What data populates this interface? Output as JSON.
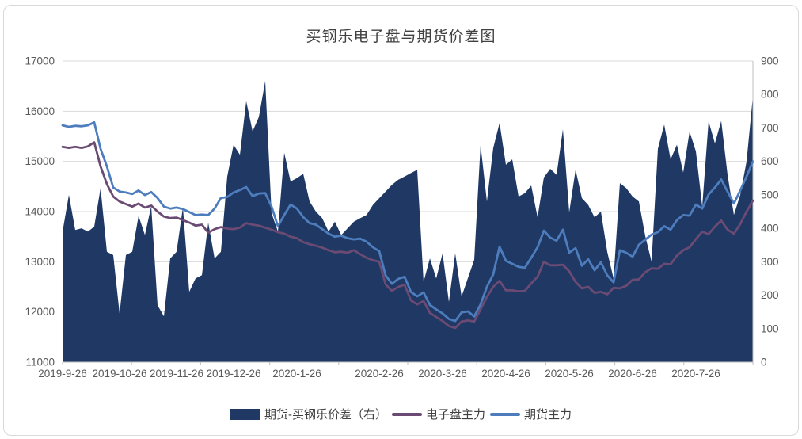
{
  "title": "买钢乐电子盘与期货价差图",
  "colors": {
    "area": "#1f3864",
    "electronic_line": "#6b4b73",
    "futures_line": "#4e7dbe",
    "grid": "#d9d9d9",
    "axis_line": "#bfbfbf",
    "tick_text": "#595959",
    "title_text": "#404040",
    "legend_text": "#404040",
    "card_border": "#d9d9d9"
  },
  "legend": [
    {
      "label": "期货-买钢乐价差（右）",
      "type": "area"
    },
    {
      "label": "电子盘主力",
      "type": "line"
    },
    {
      "label": "期货主力",
      "type": "line"
    }
  ],
  "chart_data": {
    "type": "combo-area-line",
    "title": "买钢乐电子盘与期货价差图",
    "left_axis": {
      "min": 11000,
      "max": 17000,
      "step": 1000,
      "ticks": [
        11000,
        12000,
        13000,
        14000,
        15000,
        16000,
        17000
      ]
    },
    "right_axis": {
      "min": 0,
      "max": 900,
      "step": 100,
      "ticks": [
        0,
        100,
        200,
        300,
        400,
        500,
        600,
        700,
        800,
        900
      ]
    },
    "x_ticks": [
      {
        "index": 0,
        "label": "2019-9-26"
      },
      {
        "index": 9,
        "label": "2019-10-26"
      },
      {
        "index": 18,
        "label": "2019-11-26"
      },
      {
        "index": 27,
        "label": "2019-12-26"
      },
      {
        "index": 37,
        "label": "2020-1-26"
      },
      {
        "index": 50,
        "label": "2020-2-26"
      },
      {
        "index": 60,
        "label": "2020-3-26"
      },
      {
        "index": 70,
        "label": "2020-4-26"
      },
      {
        "index": 80,
        "label": "2020-5-26"
      },
      {
        "index": 90,
        "label": "2020-6-26"
      },
      {
        "index": 100,
        "label": "2020-7-26"
      }
    ],
    "grid": true,
    "legend_position": "bottom",
    "series": [
      {
        "name": "期货-买钢乐价差（右）",
        "type": "area",
        "axis": "right",
        "values": [
          390,
          500,
          395,
          400,
          390,
          405,
          520,
          330,
          320,
          145,
          320,
          330,
          437,
          380,
          466,
          170,
          137,
          310,
          330,
          463,
          210,
          250,
          260,
          417,
          310,
          330,
          555,
          650,
          620,
          780,
          690,
          733,
          840,
          445,
          390,
          626,
          540,
          550,
          563,
          480,
          450,
          430,
          390,
          420,
          380,
          400,
          420,
          430,
          440,
          470,
          490,
          510,
          530,
          545,
          555,
          565,
          575,
          240,
          310,
          250,
          325,
          180,
          325,
          196,
          251,
          306,
          649,
          480,
          640,
          715,
          590,
          606,
          495,
          505,
          528,
          433,
          552,
          578,
          560,
          696,
          448,
          575,
          490,
          470,
          433,
          450,
          330,
          250,
          535,
          520,
          495,
          480,
          377,
          300,
          638,
          710,
          606,
          650,
          567,
          689,
          630,
          465,
          720,
          654,
          721,
          560,
          440,
          500,
          600,
          795
        ]
      },
      {
        "name": "电子盘主力",
        "type": "line",
        "axis": "left",
        "values": [
          15290,
          15270,
          15290,
          15270,
          15300,
          15380,
          14900,
          14550,
          14300,
          14200,
          14150,
          14100,
          14160,
          14080,
          14120,
          14000,
          13900,
          13870,
          13880,
          13830,
          13780,
          13720,
          13740,
          13580,
          13650,
          13690,
          13660,
          13650,
          13680,
          13770,
          13740,
          13720,
          13680,
          13640,
          13590,
          13560,
          13500,
          13470,
          13390,
          13350,
          13320,
          13280,
          13230,
          13190,
          13200,
          13180,
          13230,
          13150,
          13080,
          13030,
          13000,
          12550,
          12420,
          12500,
          12540,
          12230,
          12150,
          12220,
          11980,
          11900,
          11820,
          11720,
          11680,
          11810,
          11830,
          11810,
          12050,
          12300,
          12500,
          12620,
          12430,
          12430,
          12410,
          12420,
          12570,
          12700,
          13000,
          12930,
          12930,
          12940,
          12810,
          12600,
          12470,
          12500,
          12380,
          12400,
          12350,
          12480,
          12470,
          12520,
          12640,
          12650,
          12790,
          12870,
          12860,
          12960,
          12950,
          13120,
          13230,
          13290,
          13450,
          13600,
          13550,
          13700,
          13820,
          13640,
          13560,
          13750,
          14000,
          14220
        ]
      },
      {
        "name": "期货主力",
        "type": "line",
        "axis": "left",
        "values": [
          15720,
          15690,
          15710,
          15700,
          15720,
          15780,
          15250,
          14900,
          14480,
          14400,
          14380,
          14350,
          14420,
          14330,
          14390,
          14270,
          14100,
          14060,
          14080,
          14050,
          13990,
          13930,
          13940,
          13930,
          14060,
          14270,
          14290,
          14380,
          14430,
          14490,
          14310,
          14360,
          14370,
          14100,
          13710,
          13930,
          14140,
          14060,
          13890,
          13770,
          13740,
          13650,
          13560,
          13500,
          13520,
          13470,
          13445,
          13460,
          13400,
          13290,
          13210,
          12730,
          12560,
          12660,
          12700,
          12400,
          12310,
          12390,
          12140,
          12050,
          11970,
          11860,
          11820,
          11990,
          12010,
          11910,
          12150,
          12500,
          12750,
          13300,
          13020,
          12960,
          12900,
          12880,
          13080,
          13290,
          13620,
          13480,
          13420,
          13640,
          13180,
          13270,
          12920,
          13050,
          12830,
          12990,
          12730,
          12590,
          13230,
          13180,
          13100,
          13340,
          13440,
          13540,
          13590,
          13710,
          13640,
          13830,
          13930,
          13920,
          14140,
          14060,
          14340,
          14480,
          14640,
          14400,
          14160,
          14420,
          14700,
          15000
        ]
      }
    ]
  }
}
